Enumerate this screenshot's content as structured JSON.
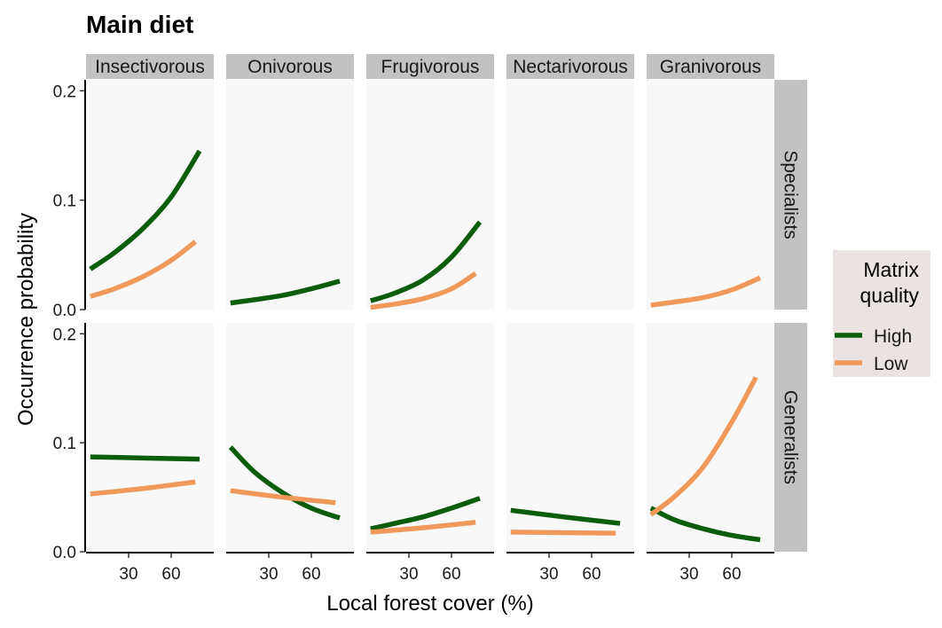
{
  "chart_data": {
    "type": "line",
    "title": "Main diet",
    "xlabel": "Local forest cover (%)",
    "ylabel": "Occurrence probability",
    "xlim": [
      0,
      90
    ],
    "ylim": [
      0,
      0.21
    ],
    "x_ticks": [
      30,
      60
    ],
    "y_ticks": [
      0.0,
      0.1,
      0.2
    ],
    "y_tick_labels": [
      "0.0",
      "0.1",
      "0.2"
    ],
    "facet_cols": [
      "Insectivorous",
      "Onivorous",
      "Frugivorous",
      "Nectarivorous",
      "Granivorous"
    ],
    "facet_rows": [
      "Specialists",
      "Generalists"
    ],
    "legend": {
      "title_lines": [
        "Matrix",
        "quality"
      ],
      "position": "right",
      "entries": [
        {
          "name": "High",
          "color": "#0b5c0b"
        },
        {
          "name": "Low",
          "color": "#f0995a"
        }
      ]
    },
    "panel_background": "#f8f8f8",
    "strip_background": "#c2c2c2",
    "legend_background": "#ebe3e2",
    "panels": [
      {
        "row": "Specialists",
        "col": "Insectivorous",
        "series": [
          {
            "name": "High",
            "x": [
              3,
              20,
              40,
              60,
              80
            ],
            "y": [
              0.037,
              0.052,
              0.074,
              0.103,
              0.145
            ]
          },
          {
            "name": "Low",
            "x": [
              3,
              20,
              40,
              60,
              77
            ],
            "y": [
              0.012,
              0.019,
              0.03,
              0.045,
              0.062
            ]
          }
        ]
      },
      {
        "row": "Specialists",
        "col": "Onivorous",
        "series": [
          {
            "name": "High",
            "x": [
              3,
              20,
              40,
              60,
              80
            ],
            "y": [
              0.006,
              0.009,
              0.013,
              0.019,
              0.026
            ]
          }
        ]
      },
      {
        "row": "Specialists",
        "col": "Frugivorous",
        "series": [
          {
            "name": "High",
            "x": [
              3,
              20,
              40,
              60,
              80
            ],
            "y": [
              0.008,
              0.015,
              0.027,
              0.048,
              0.08
            ]
          },
          {
            "name": "Low",
            "x": [
              3,
              20,
              40,
              60,
              77
            ],
            "y": [
              0.002,
              0.005,
              0.01,
              0.019,
              0.033
            ]
          }
        ]
      },
      {
        "row": "Specialists",
        "col": "Nectarivorous",
        "series": []
      },
      {
        "row": "Specialists",
        "col": "Granivorous",
        "series": [
          {
            "name": "Low",
            "x": [
              3,
              20,
              40,
              60,
              80
            ],
            "y": [
              0.004,
              0.007,
              0.011,
              0.018,
              0.029
            ]
          }
        ]
      },
      {
        "row": "Generalists",
        "col": "Insectivorous",
        "series": [
          {
            "name": "High",
            "x": [
              3,
              40,
              80
            ],
            "y": [
              0.087,
              0.086,
              0.085
            ]
          },
          {
            "name": "Low",
            "x": [
              3,
              40,
              77
            ],
            "y": [
              0.053,
              0.058,
              0.064
            ]
          }
        ]
      },
      {
        "row": "Generalists",
        "col": "Onivorous",
        "series": [
          {
            "name": "High",
            "x": [
              3,
              20,
              40,
              60,
              80
            ],
            "y": [
              0.096,
              0.073,
              0.054,
              0.04,
              0.031
            ]
          },
          {
            "name": "Low",
            "x": [
              3,
              40,
              77
            ],
            "y": [
              0.056,
              0.05,
              0.045
            ]
          }
        ]
      },
      {
        "row": "Generalists",
        "col": "Frugivorous",
        "series": [
          {
            "name": "High",
            "x": [
              3,
              20,
              40,
              60,
              80
            ],
            "y": [
              0.021,
              0.026,
              0.032,
              0.04,
              0.049
            ]
          },
          {
            "name": "Low",
            "x": [
              3,
              40,
              77
            ],
            "y": [
              0.018,
              0.022,
              0.027
            ]
          }
        ]
      },
      {
        "row": "Generalists",
        "col": "Nectarivorous",
        "series": [
          {
            "name": "High",
            "x": [
              3,
              40,
              80
            ],
            "y": [
              0.038,
              0.032,
              0.026
            ]
          },
          {
            "name": "Low",
            "x": [
              3,
              40,
              77
            ],
            "y": [
              0.018,
              0.0175,
              0.017
            ]
          }
        ]
      },
      {
        "row": "Generalists",
        "col": "Granivorous",
        "series": [
          {
            "name": "High",
            "x": [
              3,
              20,
              40,
              60,
              80
            ],
            "y": [
              0.04,
              0.029,
              0.021,
              0.015,
              0.011
            ]
          },
          {
            "name": "Low",
            "x": [
              3,
              20,
              40,
              60,
              77
            ],
            "y": [
              0.034,
              0.051,
              0.078,
              0.119,
              0.16
            ]
          }
        ]
      }
    ]
  }
}
